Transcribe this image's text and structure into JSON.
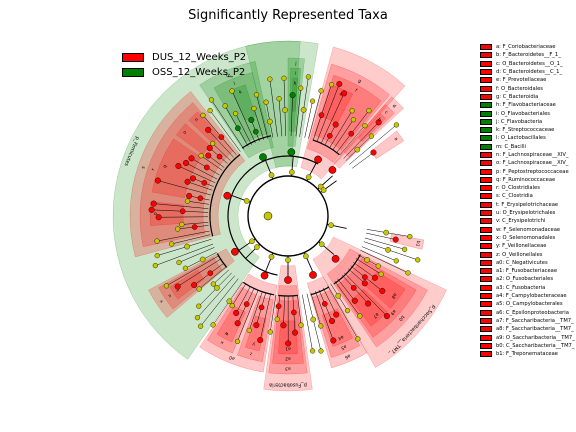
{
  "title": "Significantly Represented Taxa",
  "colors": {
    "DUS": "#ff0000",
    "OSS": "#008000",
    "node": "#c8c800",
    "ring": "#000000"
  },
  "groups": [
    {
      "key": "DUS",
      "label": "DUS_12_Weeks_P2",
      "color": "#ff0000"
    },
    {
      "key": "OSS",
      "label": "OSS_12_Weeks_P2",
      "color": "#008000"
    }
  ],
  "chart_data": {
    "type": "cladogram",
    "title": "Significantly Represented Taxa",
    "legend_position": "top-left",
    "taxa": [
      {
        "key": "a",
        "label": "a: F_Coriobacteriaceae",
        "group": "DUS"
      },
      {
        "key": "b",
        "label": "b: F_Bacteroidetes__F_1_",
        "group": "DUS"
      },
      {
        "key": "c",
        "label": "c: O_Bacteroidetes__O_1_",
        "group": "DUS"
      },
      {
        "key": "d",
        "label": "d: C_Bacteroidetes__C_1_",
        "group": "DUS"
      },
      {
        "key": "e",
        "label": "e: F_Prevotellaceae",
        "group": "DUS"
      },
      {
        "key": "f",
        "label": "f: O_Bacteroidales",
        "group": "DUS"
      },
      {
        "key": "g",
        "label": "g: C_Bacteroidia",
        "group": "DUS"
      },
      {
        "key": "h",
        "label": "h: F_Flavobacteriaceae",
        "group": "OSS"
      },
      {
        "key": "i",
        "label": "i: O_Flavobacteriales",
        "group": "OSS"
      },
      {
        "key": "j",
        "label": "j: C_Flavobacteria",
        "group": "OSS"
      },
      {
        "key": "k",
        "label": "k: F_Streptococcaceae",
        "group": "OSS"
      },
      {
        "key": "l",
        "label": "l: O_Lactobacillales",
        "group": "OSS"
      },
      {
        "key": "m",
        "label": "m: C_Bacilli",
        "group": "OSS"
      },
      {
        "key": "n",
        "label": "n: F_Lachnospiraceae__XIV_",
        "group": "DUS"
      },
      {
        "key": "o",
        "label": "o: F_Lachnospiraceae__XIV_",
        "group": "DUS"
      },
      {
        "key": "p",
        "label": "p: F_Peptostreptococcaceae",
        "group": "DUS"
      },
      {
        "key": "q",
        "label": "q: F_Ruminococcaceae",
        "group": "DUS"
      },
      {
        "key": "r",
        "label": "r: O_Clostridiales",
        "group": "DUS"
      },
      {
        "key": "s",
        "label": "s: C_Clostridia",
        "group": "DUS"
      },
      {
        "key": "t",
        "label": "t: F_Erysipelotrichaceae",
        "group": "DUS"
      },
      {
        "key": "u",
        "label": "u: O_Erysipelotrichales",
        "group": "DUS"
      },
      {
        "key": "v",
        "label": "v: C_Erysipelotrichi",
        "group": "DUS"
      },
      {
        "key": "w",
        "label": "w: F_Selenomonadaceae",
        "group": "DUS"
      },
      {
        "key": "x",
        "label": "x: O_Selenomonadales",
        "group": "DUS"
      },
      {
        "key": "y",
        "label": "y: F_Veillonellaceae",
        "group": "DUS"
      },
      {
        "key": "z",
        "label": "z: O_Veillonellales",
        "group": "DUS"
      },
      {
        "key": "a0",
        "label": "a0: C_Negativicutes",
        "group": "DUS"
      },
      {
        "key": "a1",
        "label": "a1: F_Fusobacteriaceae",
        "group": "DUS"
      },
      {
        "key": "a2",
        "label": "a2: O_Fusobacteriales",
        "group": "DUS"
      },
      {
        "key": "a3",
        "label": "a3: C_Fusobacteria",
        "group": "DUS"
      },
      {
        "key": "a4",
        "label": "a4: F_Campylobacteraceae",
        "group": "DUS"
      },
      {
        "key": "a5",
        "label": "a5: O_Campylobacterales",
        "group": "DUS"
      },
      {
        "key": "a6",
        "label": "a6: C_Epsilonproteobacteria",
        "group": "DUS"
      },
      {
        "key": "a7",
        "label": "a7: F_Saccharibacteria__TM7_",
        "group": "DUS"
      },
      {
        "key": "a8",
        "label": "a8: F_Saccharibacteria__TM7_",
        "group": "DUS"
      },
      {
        "key": "a9",
        "label": "a9: O_Saccharibacteria__TM7_",
        "group": "DUS"
      },
      {
        "key": "b0",
        "label": "b0: C_Saccharibacteria__TM7_",
        "group": "DUS"
      },
      {
        "key": "b1",
        "label": "b1: F_Treponemataceae",
        "group": "DUS"
      }
    ],
    "phyla": [
      {
        "label": "p_Firmicutes",
        "group": "OSS",
        "start_deg": 125,
        "end_deg": 280
      },
      {
        "label": "p_Fusobacteria",
        "group": "DUS",
        "start_deg": 82,
        "end_deg": 98
      },
      {
        "label": "p_Saccharibacteria__TM7_",
        "group": "DUS",
        "start_deg": 25,
        "end_deg": 60
      },
      {
        "label": "",
        "group": "DUS",
        "start_deg": 285,
        "end_deg": 312
      },
      {
        "label": "",
        "group": "OSS",
        "start_deg": 256,
        "end_deg": 274
      }
    ],
    "clades": [
      {
        "key": "g",
        "group": "DUS",
        "level": 2,
        "start_deg": 286,
        "end_deg": 310
      },
      {
        "key": "f",
        "group": "DUS",
        "level": 3,
        "start_deg": 288,
        "end_deg": 309
      },
      {
        "key": "e",
        "group": "DUS",
        "level": 4,
        "start_deg": 289,
        "end_deg": 298
      },
      {
        "key": "d",
        "group": "DUS",
        "level": 2,
        "start_deg": 311,
        "end_deg": 317
      },
      {
        "key": "c",
        "group": "DUS",
        "level": 3,
        "start_deg": 311,
        "end_deg": 316
      },
      {
        "key": "b",
        "group": "DUS",
        "level": 4,
        "start_deg": 312,
        "end_deg": 315
      },
      {
        "key": "a",
        "group": "DUS",
        "level": 4,
        "start_deg": 322,
        "end_deg": 327
      },
      {
        "key": "j",
        "group": "OSS",
        "level": 2,
        "start_deg": 270,
        "end_deg": 276
      },
      {
        "key": "i",
        "group": "OSS",
        "level": 3,
        "start_deg": 271,
        "end_deg": 275
      },
      {
        "key": "h",
        "group": "OSS",
        "level": 4,
        "start_deg": 272,
        "end_deg": 274
      },
      {
        "key": "m",
        "group": "OSS",
        "level": 2,
        "start_deg": 236,
        "end_deg": 258
      },
      {
        "key": "l",
        "group": "OSS",
        "level": 3,
        "start_deg": 240,
        "end_deg": 256
      },
      {
        "key": "k",
        "group": "OSS",
        "level": 4,
        "start_deg": 246,
        "end_deg": 252
      },
      {
        "key": "s",
        "group": "DUS",
        "level": 2,
        "start_deg": 165,
        "end_deg": 232
      },
      {
        "key": "r",
        "group": "DUS",
        "level": 3,
        "start_deg": 168,
        "end_deg": 230
      },
      {
        "key": "q",
        "group": "DUS",
        "level": 4,
        "start_deg": 190,
        "end_deg": 214
      },
      {
        "key": "p",
        "group": "DUS",
        "level": 4,
        "start_deg": 176,
        "end_deg": 186
      },
      {
        "key": "o",
        "group": "DUS",
        "level": 4,
        "start_deg": 216,
        "end_deg": 222
      },
      {
        "key": "n",
        "group": "DUS",
        "level": 4,
        "start_deg": 224,
        "end_deg": 229
      },
      {
        "key": "v",
        "group": "DUS",
        "level": 2,
        "start_deg": 140,
        "end_deg": 152
      },
      {
        "key": "u",
        "group": "DUS",
        "level": 3,
        "start_deg": 141,
        "end_deg": 151
      },
      {
        "key": "t",
        "group": "DUS",
        "level": 4,
        "start_deg": 143,
        "end_deg": 149
      },
      {
        "key": "a0",
        "group": "DUS",
        "level": 2,
        "start_deg": 99,
        "end_deg": 124
      },
      {
        "key": "z",
        "group": "DUS",
        "level": 3,
        "start_deg": 100,
        "end_deg": 110
      },
      {
        "key": "y",
        "group": "DUS",
        "level": 4,
        "start_deg": 102,
        "end_deg": 108
      },
      {
        "key": "x",
        "group": "DUS",
        "level": 3,
        "start_deg": 112,
        "end_deg": 123
      },
      {
        "key": "w",
        "group": "DUS",
        "level": 4,
        "start_deg": 114,
        "end_deg": 121
      },
      {
        "key": "a3",
        "group": "DUS",
        "level": 2,
        "start_deg": 83,
        "end_deg": 97
      },
      {
        "key": "a2",
        "group": "DUS",
        "level": 3,
        "start_deg": 84,
        "end_deg": 96
      },
      {
        "key": "a1",
        "group": "DUS",
        "level": 4,
        "start_deg": 86,
        "end_deg": 94
      },
      {
        "key": "a6",
        "group": "DUS",
        "level": 2,
        "start_deg": 60,
        "end_deg": 74
      },
      {
        "key": "a5",
        "group": "DUS",
        "level": 3,
        "start_deg": 61,
        "end_deg": 73
      },
      {
        "key": "a4",
        "group": "DUS",
        "level": 4,
        "start_deg": 62,
        "end_deg": 71
      },
      {
        "key": "b0",
        "group": "DUS",
        "level": 2,
        "start_deg": 28,
        "end_deg": 56
      },
      {
        "key": "a9",
        "group": "DUS",
        "level": 3,
        "start_deg": 30,
        "end_deg": 55
      },
      {
        "key": "a8",
        "group": "DUS",
        "level": 4,
        "start_deg": 32,
        "end_deg": 42
      },
      {
        "key": "a7",
        "group": "DUS",
        "level": 4,
        "start_deg": 44,
        "end_deg": 53
      },
      {
        "key": "b1",
        "group": "DUS",
        "level": 4,
        "start_deg": 10,
        "end_deg": 14
      }
    ]
  }
}
